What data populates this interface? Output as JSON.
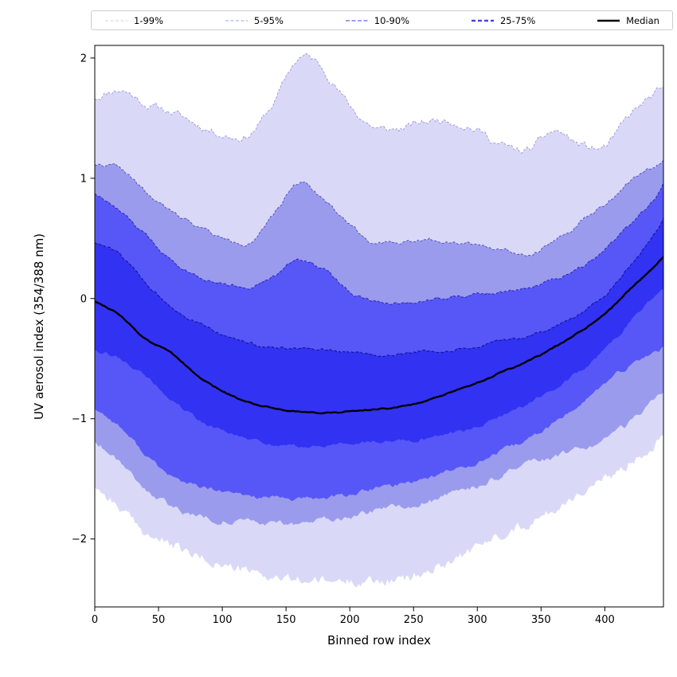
{
  "figure": {
    "background": "#ffffff"
  },
  "legend": {
    "items": [
      {
        "label": "1-99%",
        "color": "#d0d0f0",
        "width": 1.1,
        "dash": "4,2.5"
      },
      {
        "label": "5-95%",
        "color": "#b4b4ef",
        "width": 1.3,
        "dash": "4,2.5"
      },
      {
        "label": "10-90%",
        "color": "#7f7ff2",
        "width": 1.6,
        "dash": "5,2.5"
      },
      {
        "label": "25-75%",
        "color": "#4444e8",
        "width": 2.4,
        "dash": "5,3"
      },
      {
        "label": "Median",
        "color": "#000000",
        "width": 2.6,
        "dash": null
      }
    ]
  },
  "chart_data": {
    "type": "area",
    "subtype": "percentile-fan",
    "title": "",
    "xlabel": "Binned row index",
    "ylabel": "UV aerosol index (354/388 nm)",
    "xlim": [
      0,
      446
    ],
    "ylim": [
      -2.565,
      2.105
    ],
    "grid": false,
    "legend_position": "top",
    "xticks": [
      {
        "v": 0,
        "label": "0"
      },
      {
        "v": 50,
        "label": "50"
      },
      {
        "v": 100,
        "label": "100"
      },
      {
        "v": 150,
        "label": "150"
      },
      {
        "v": 200,
        "label": "200"
      },
      {
        "v": 250,
        "label": "250"
      },
      {
        "v": 300,
        "label": "300"
      },
      {
        "v": 350,
        "label": "350"
      },
      {
        "v": 400,
        "label": "400"
      }
    ],
    "yticks": [
      {
        "v": 2,
        "label": "2"
      },
      {
        "v": 1,
        "label": "1"
      },
      {
        "v": 0,
        "label": "0"
      },
      {
        "v": -1,
        "label": "−1"
      },
      {
        "v": -2,
        "label": "−2"
      }
    ],
    "x": [
      0,
      20,
      40,
      60,
      80,
      100,
      120,
      140,
      160,
      180,
      200,
      220,
      240,
      260,
      280,
      300,
      320,
      340,
      360,
      380,
      400,
      420,
      440,
      446
    ],
    "series": [
      {
        "name": "99th percentile (upper of 1-99%)",
        "key": "p99u",
        "values": [
          1.67,
          1.74,
          1.62,
          1.55,
          1.45,
          1.37,
          1.36,
          1.62,
          2.0,
          1.9,
          1.6,
          1.42,
          1.41,
          1.47,
          1.48,
          1.4,
          1.27,
          1.23,
          1.39,
          1.28,
          1.26,
          1.52,
          1.7,
          1.72
        ]
      },
      {
        "name": "95th percentile (upper of 5-95%)",
        "key": "p95u",
        "values": [
          1.12,
          1.08,
          0.88,
          0.72,
          0.61,
          0.5,
          0.47,
          0.68,
          0.97,
          0.82,
          0.62,
          0.46,
          0.47,
          0.49,
          0.48,
          0.45,
          0.41,
          0.38,
          0.48,
          0.63,
          0.78,
          0.97,
          1.1,
          1.17
        ]
      },
      {
        "name": "90th percentile (upper of 10-90%)",
        "key": "p90u",
        "values": [
          0.88,
          0.72,
          0.52,
          0.33,
          0.2,
          0.13,
          0.1,
          0.18,
          0.32,
          0.24,
          0.06,
          -0.03,
          -0.04,
          -0.01,
          0.01,
          0.03,
          0.05,
          0.09,
          0.16,
          0.26,
          0.42,
          0.63,
          0.85,
          0.95
        ]
      },
      {
        "name": "75th percentile (upper of 25-75%)",
        "key": "p75u",
        "values": [
          0.47,
          0.36,
          0.13,
          -0.06,
          -0.2,
          -0.3,
          -0.37,
          -0.41,
          -0.42,
          -0.44,
          -0.45,
          -0.47,
          -0.46,
          -0.44,
          -0.43,
          -0.4,
          -0.36,
          -0.31,
          -0.24,
          -0.13,
          0.03,
          0.28,
          0.55,
          0.66
        ]
      },
      {
        "name": "Median",
        "key": "median",
        "values": [
          -0.02,
          -0.14,
          -0.34,
          -0.45,
          -0.64,
          -0.77,
          -0.86,
          -0.91,
          -0.94,
          -0.95,
          -0.94,
          -0.92,
          -0.9,
          -0.85,
          -0.78,
          -0.7,
          -0.61,
          -0.52,
          -0.41,
          -0.28,
          -0.13,
          0.08,
          0.28,
          0.35
        ]
      },
      {
        "name": "25th percentile (lower of 25-75%)",
        "key": "p25l",
        "values": [
          -0.42,
          -0.5,
          -0.65,
          -0.84,
          -1.0,
          -1.1,
          -1.17,
          -1.21,
          -1.23,
          -1.23,
          -1.21,
          -1.19,
          -1.18,
          -1.16,
          -1.12,
          -1.06,
          -0.97,
          -0.87,
          -0.75,
          -0.6,
          -0.43,
          -0.19,
          0.04,
          0.1
        ]
      },
      {
        "name": "10th percentile (lower of 10-90%)",
        "key": "p10l",
        "values": [
          -0.91,
          -1.07,
          -1.3,
          -1.48,
          -1.56,
          -1.61,
          -1.64,
          -1.66,
          -1.67,
          -1.66,
          -1.63,
          -1.58,
          -1.54,
          -1.49,
          -1.43,
          -1.36,
          -1.27,
          -1.17,
          -1.04,
          -0.88,
          -0.71,
          -0.56,
          -0.44,
          -0.4
        ]
      },
      {
        "name": "5th percentile (lower of 5-95%)",
        "key": "p05l",
        "values": [
          -1.18,
          -1.35,
          -1.58,
          -1.73,
          -1.8,
          -1.84,
          -1.86,
          -1.87,
          -1.87,
          -1.85,
          -1.81,
          -1.77,
          -1.73,
          -1.69,
          -1.63,
          -1.56,
          -1.47,
          -1.39,
          -1.33,
          -1.25,
          -1.17,
          -1.04,
          -0.85,
          -0.78
        ]
      },
      {
        "name": "1st percentile (lower of 1-99%)",
        "key": "p01l",
        "values": [
          -1.55,
          -1.75,
          -1.95,
          -2.05,
          -2.15,
          -2.22,
          -2.27,
          -2.32,
          -2.34,
          -2.35,
          -2.35,
          -2.35,
          -2.34,
          -2.28,
          -2.17,
          -2.07,
          -1.95,
          -1.87,
          -1.76,
          -1.62,
          -1.51,
          -1.36,
          -1.2,
          -1.1
        ]
      }
    ],
    "bands": [
      {
        "label": "1-99%",
        "upper": "p99u",
        "lower": "p01l",
        "fill": "#d9d9f7",
        "edge": "#9898e0",
        "edge_width": 0.9,
        "edge_dash": "3,2",
        "noise_upper": 0.05,
        "noise_lower": 0.07
      },
      {
        "label": "5-95%",
        "upper": "p95u",
        "lower": "p05l",
        "fill": "#9b9bee",
        "edge": "#4a4ac0",
        "edge_width": 0.9,
        "edge_dash": "3,2",
        "noise_upper": 0.026,
        "noise_lower": 0.04
      },
      {
        "label": "10-90%",
        "upper": "p90u",
        "lower": "p10l",
        "fill": "#5757f8",
        "edge": "#2828b0",
        "edge_width": 1.0,
        "edge_dash": "3.5,2",
        "noise_upper": 0.023,
        "noise_lower": 0.03
      },
      {
        "label": "25-75%",
        "upper": "p75u",
        "lower": "p25l",
        "fill": "#3232f2",
        "edge": "#14149a",
        "edge_width": 1.1,
        "edge_dash": "4,2",
        "noise_upper": 0.02,
        "noise_lower": 0.025
      }
    ],
    "median_line": {
      "label": "Median",
      "key": "median",
      "color": "#000000",
      "width": 2.4,
      "noise": 0.008
    }
  }
}
